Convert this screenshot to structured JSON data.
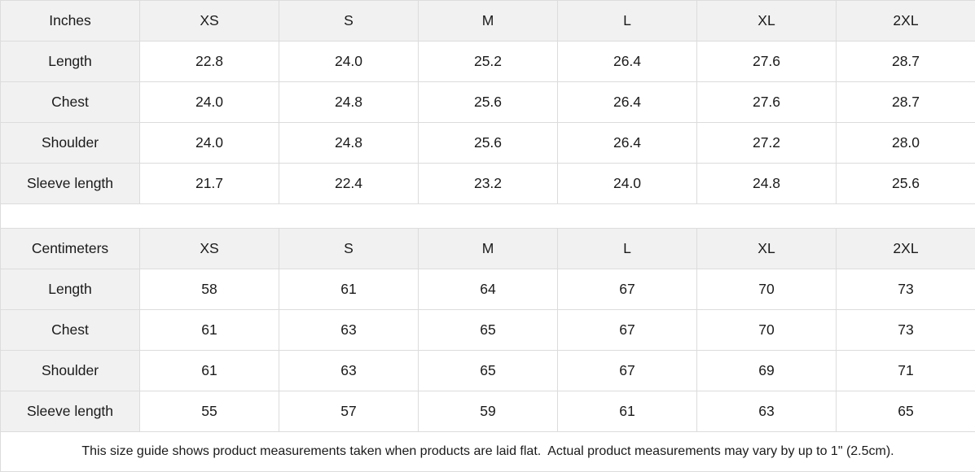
{
  "tables": [
    {
      "unit_label": "Inches",
      "sizes": [
        "XS",
        "S",
        "M",
        "L",
        "XL",
        "2XL"
      ],
      "rows": [
        {
          "label": "Length",
          "values": [
            "22.8",
            "24.0",
            "25.2",
            "26.4",
            "27.6",
            "28.7"
          ]
        },
        {
          "label": "Chest",
          "values": [
            "24.0",
            "24.8",
            "25.6",
            "26.4",
            "27.6",
            "28.7"
          ]
        },
        {
          "label": "Shoulder",
          "values": [
            "24.0",
            "24.8",
            "25.6",
            "26.4",
            "27.2",
            "28.0"
          ]
        },
        {
          "label": "Sleeve length",
          "values": [
            "21.7",
            "22.4",
            "23.2",
            "24.0",
            "24.8",
            "25.6"
          ]
        }
      ]
    },
    {
      "unit_label": "Centimeters",
      "sizes": [
        "XS",
        "S",
        "M",
        "L",
        "XL",
        "2XL"
      ],
      "rows": [
        {
          "label": "Length",
          "values": [
            "58",
            "61",
            "64",
            "67",
            "70",
            "73"
          ]
        },
        {
          "label": "Chest",
          "values": [
            "61",
            "63",
            "65",
            "67",
            "70",
            "73"
          ]
        },
        {
          "label": "Shoulder",
          "values": [
            "61",
            "63",
            "65",
            "67",
            "69",
            "71"
          ]
        },
        {
          "label": "Sleeve length",
          "values": [
            "55",
            "57",
            "59",
            "61",
            "63",
            "65"
          ]
        }
      ]
    }
  ],
  "footer": {
    "note": "This size guide shows product measurements taken when products are laid flat.  Actual product measurements may vary by up to 1\" (2.5cm)."
  },
  "colors": {
    "header_bg": "#f1f1f1",
    "border": "#dcdcdc",
    "text": "#1a1a1a"
  }
}
